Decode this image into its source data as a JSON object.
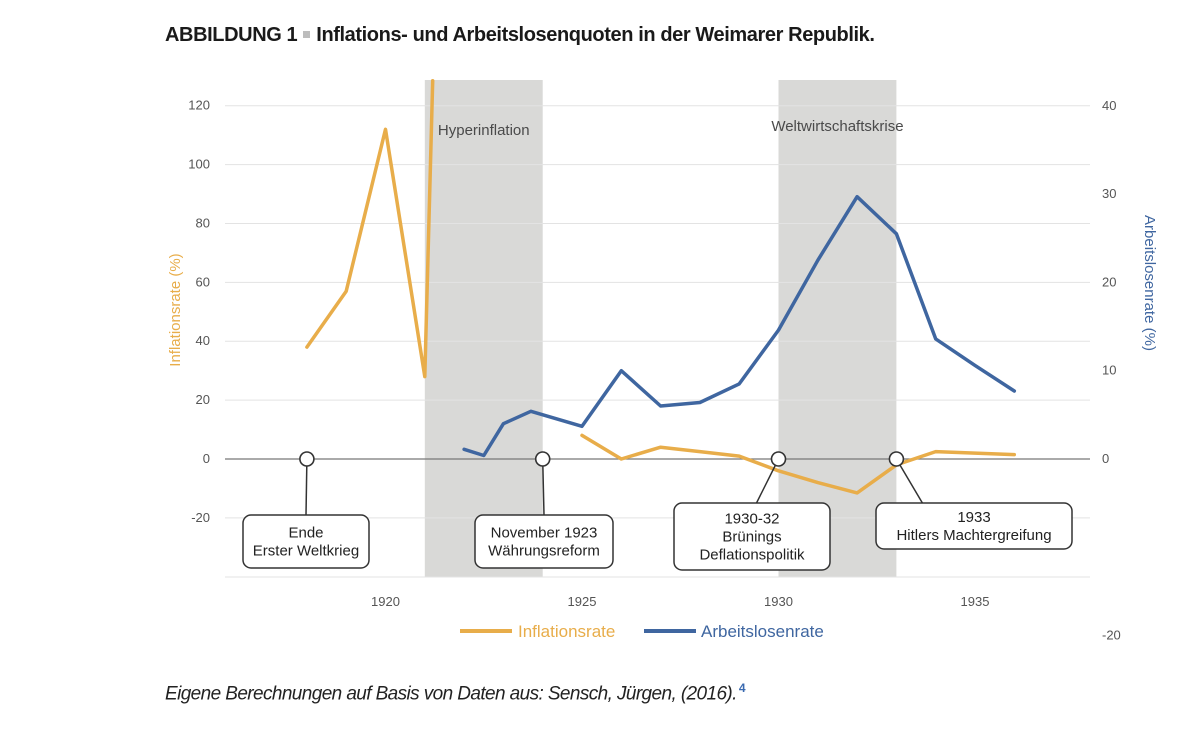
{
  "figure": {
    "label": "ABBILDUNG 1",
    "title": "Inflations- und Arbeitslosenquoten in der Weimarer Republik.",
    "source": "Eigene Berechnungen auf Basis von Daten aus: Sensch, Jürgen, (2016).",
    "footnote": "4"
  },
  "chart_data": {
    "type": "line",
    "title": "Inflations- und Arbeitslosenquoten in der Weimarer Republik.",
    "xlabel": "",
    "ylabel": "Inflationsrate (%)",
    "y2label": "Arbeitslosenrate (%)",
    "xlim": [
      1916,
      1938
    ],
    "ylim": [
      -40,
      130
    ],
    "y2lim": [
      -20,
      40
    ],
    "x_ticks": [
      1920,
      1925,
      1930,
      1935
    ],
    "y_ticks": [
      120,
      100,
      80,
      60,
      40,
      20,
      0,
      -20
    ],
    "y2_ticks": [
      40,
      30,
      20,
      10,
      0,
      -20
    ],
    "grid": true,
    "legend_position": "bottom",
    "colors": {
      "inflation": "#e8ad4a",
      "unemployment": "#3f66a0",
      "shade": "#d9d9d7"
    },
    "series": [
      {
        "name": "Inflationsrate",
        "axis": "left",
        "segments": [
          [
            [
              1918,
              38
            ],
            [
              1919,
              57
            ],
            [
              1920,
              112
            ],
            [
              1921,
              28
            ],
            [
              1921.2,
              130
            ]
          ],
          [
            [
              1925,
              8
            ],
            [
              1926,
              0
            ],
            [
              1927,
              4
            ],
            [
              1928,
              2.5
            ],
            [
              1929,
              1
            ],
            [
              1930,
              -4
            ],
            [
              1931,
              -8
            ],
            [
              1932,
              -11.5
            ],
            [
              1933,
              -2
            ],
            [
              1934,
              2.5
            ],
            [
              1936,
              1.5
            ]
          ]
        ]
      },
      {
        "name": "Arbeitslosenrate",
        "axis": "right",
        "points": [
          [
            1922,
            1.1
          ],
          [
            1922.5,
            0.4
          ],
          [
            1923,
            4
          ],
          [
            1923.7,
            5.4
          ],
          [
            1925,
            3.7
          ],
          [
            1926,
            10
          ],
          [
            1927,
            6
          ],
          [
            1928,
            6.4
          ],
          [
            1929,
            8.5
          ],
          [
            1930,
            14.6
          ],
          [
            1931,
            22.5
          ],
          [
            1932,
            29.7
          ],
          [
            1933,
            25.5
          ],
          [
            1934,
            13.6
          ],
          [
            1935,
            10.6
          ],
          [
            1936,
            7.7
          ]
        ]
      }
    ],
    "shaded_periods": [
      {
        "label": "Hyperinflation",
        "from": 1921,
        "to": 1924
      },
      {
        "label": "Weltwirtschaftskrise",
        "from": 1930,
        "to": 1933
      }
    ],
    "annotations": [
      {
        "x": 1918,
        "lines": [
          "Ende",
          "Erster Weltkrieg"
        ]
      },
      {
        "x": 1924,
        "lines": [
          "November 1923",
          "Währungsreform"
        ]
      },
      {
        "x": 1930,
        "lines": [
          "1930-32",
          "Brünings",
          "Deflationspolitik"
        ]
      },
      {
        "x": 1933,
        "lines": [
          "1933",
          "Hitlers Machtergreifung"
        ]
      }
    ]
  }
}
